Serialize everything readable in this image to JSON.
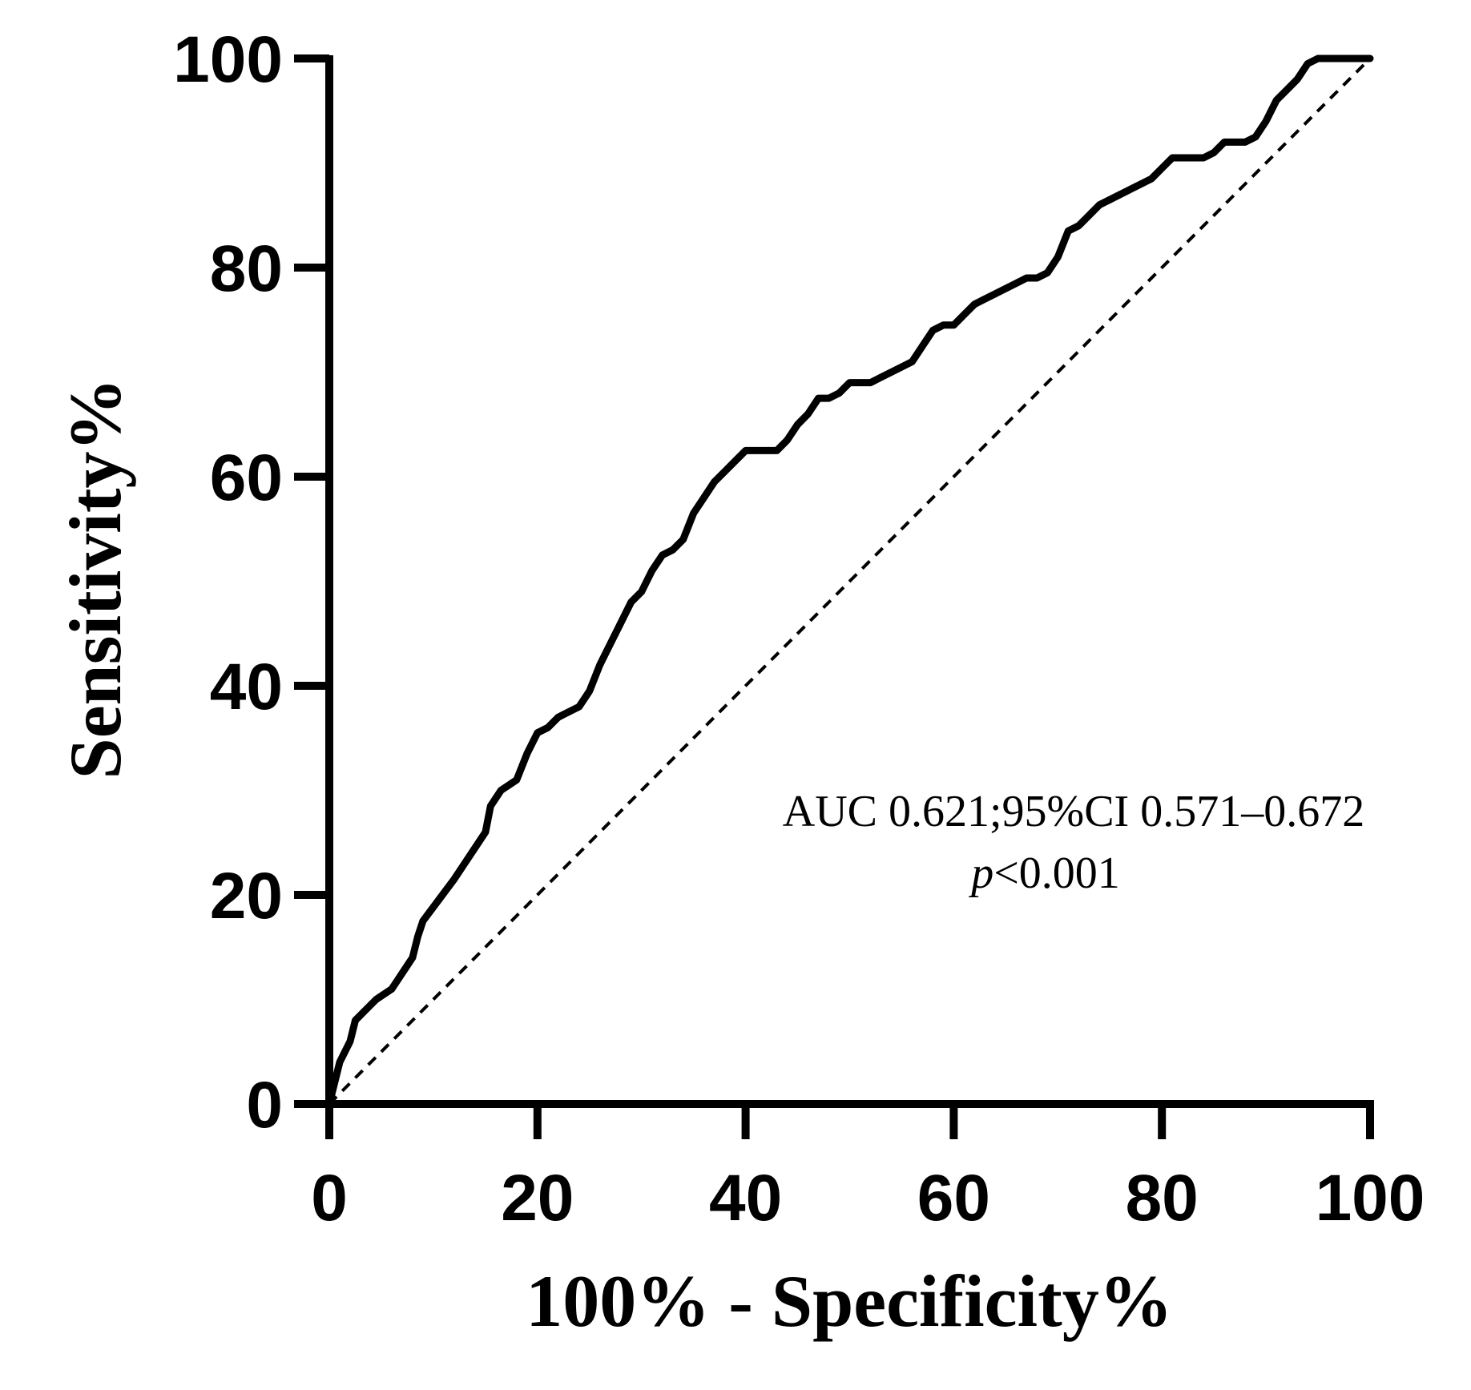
{
  "chart_data": {
    "type": "line",
    "title": "",
    "xlabel": "100% - Specificity%",
    "ylabel": "Sensitivity%",
    "xlim": [
      0,
      100
    ],
    "ylim": [
      0,
      100
    ],
    "xticks": [
      0,
      20,
      40,
      60,
      80,
      100
    ],
    "yticks": [
      0,
      20,
      40,
      60,
      80,
      100
    ],
    "grid": false,
    "series": [
      {
        "name": "ROC curve",
        "style": "solid",
        "color": "#000000",
        "x": [
          0,
          0.5,
          1,
          2,
          2.5,
          3.5,
          4.5,
          6,
          7,
          8,
          8.5,
          9,
          10.5,
          12,
          13,
          14,
          15,
          15.5,
          16.5,
          18,
          19,
          20,
          21,
          22,
          23,
          24,
          25,
          26,
          27,
          28,
          29,
          30,
          31,
          32,
          33,
          34,
          35,
          36,
          37,
          38,
          39,
          40,
          41,
          42,
          43,
          44,
          45,
          46,
          47,
          48,
          49,
          50,
          51,
          52,
          53,
          54,
          55,
          56,
          57,
          58,
          59,
          60,
          61,
          62,
          63,
          64,
          65,
          66,
          67,
          68,
          69,
          70,
          71,
          72,
          73,
          74,
          75,
          76,
          77,
          78,
          79,
          80,
          81,
          82,
          83,
          84,
          85,
          86,
          87,
          88,
          89,
          90,
          91,
          92,
          93,
          94,
          95,
          96,
          97,
          98,
          99,
          100
        ],
        "y": [
          0,
          2,
          4,
          6,
          8,
          9,
          10,
          11,
          12.5,
          14,
          16,
          17.5,
          19.5,
          21.5,
          23,
          24.5,
          26,
          28.5,
          30,
          31,
          33.5,
          35.5,
          36,
          37,
          37.5,
          38,
          39.5,
          42,
          44,
          46,
          48,
          49,
          51,
          52.5,
          53,
          54,
          56.5,
          58,
          59.5,
          60.5,
          61.5,
          62.5,
          62.5,
          62.5,
          62.5,
          63.5,
          65,
          66,
          67.5,
          67.5,
          68,
          69,
          69,
          69,
          69.5,
          70,
          70.5,
          71,
          72.5,
          74,
          74.5,
          74.5,
          75.5,
          76.5,
          77,
          77.5,
          78,
          78.5,
          79,
          79,
          79.5,
          81,
          83.5,
          84,
          85,
          86,
          86.5,
          87,
          87.5,
          88,
          88.5,
          89.5,
          90.5,
          90.5,
          90.5,
          90.5,
          91,
          92,
          92,
          92,
          92.5,
          94,
          96,
          97,
          98,
          99.5,
          100,
          100,
          100,
          100,
          100,
          100
        ]
      },
      {
        "name": "Reference line",
        "style": "dashed",
        "color": "#000000",
        "x": [
          0,
          100
        ],
        "y": [
          0,
          100
        ]
      }
    ],
    "annotations": [
      {
        "text": "AUC 0.621;95%CI 0.571–0.672"
      },
      {
        "prefix": "p",
        "text": "<0.001"
      }
    ]
  }
}
